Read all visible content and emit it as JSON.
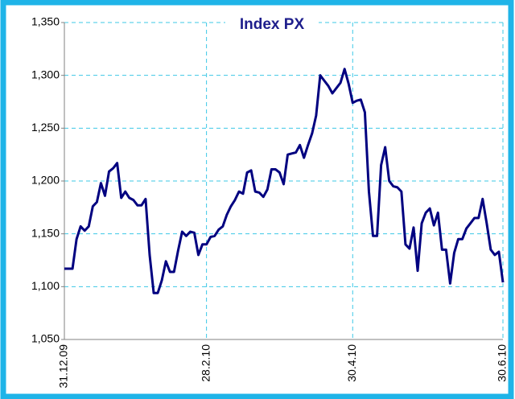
{
  "chart_data": {
    "type": "line",
    "title": "Index PX",
    "categories": [
      "31.12.09",
      null,
      null,
      null,
      null,
      null,
      null,
      null,
      null,
      null,
      null,
      null,
      null,
      null,
      null,
      null,
      null,
      null,
      null,
      null,
      null,
      null,
      null,
      null,
      null,
      null,
      null,
      null,
      null,
      null,
      null,
      null,
      null,
      null,
      null,
      "28.2.10",
      null,
      null,
      null,
      null,
      null,
      null,
      null,
      null,
      null,
      null,
      null,
      null,
      null,
      null,
      null,
      null,
      null,
      null,
      null,
      null,
      null,
      null,
      null,
      null,
      null,
      null,
      null,
      null,
      null,
      null,
      null,
      null,
      null,
      null,
      null,
      "30.4.10",
      null,
      null,
      null,
      null,
      null,
      null,
      null,
      null,
      null,
      null,
      null,
      null,
      null,
      null,
      null,
      null,
      null,
      null,
      null,
      null,
      null,
      null,
      null,
      null,
      null,
      null,
      null,
      null,
      null,
      null,
      null,
      null,
      null,
      null,
      null,
      null,
      "30.6.10"
    ],
    "series": [
      {
        "name": "Index PX",
        "color": "#000080",
        "values": [
          1117,
          1117,
          1117,
          1145,
          1157,
          1153,
          1157,
          1176,
          1180,
          1198,
          1186,
          1209,
          1212,
          1217,
          1184,
          1190,
          1184,
          1182,
          1177,
          1177,
          1183,
          1130,
          1094,
          1094,
          1106,
          1124,
          1114,
          1114,
          1134,
          1152,
          1148,
          1152,
          1151,
          1130,
          1140,
          1140,
          1147,
          1148,
          1154,
          1157,
          1168,
          1176,
          1182,
          1190,
          1188,
          1208,
          1210,
          1190,
          1189,
          1185,
          1192,
          1211,
          1211,
          1208,
          1197,
          1225,
          1226,
          1227,
          1234,
          1222,
          1234,
          1245,
          1262,
          1300,
          1295,
          1290,
          1283,
          1288,
          1293,
          1306,
          1292,
          1274,
          1276,
          1277,
          1265,
          1190,
          1148,
          1148,
          1215,
          1232,
          1200,
          1195,
          1194,
          1190,
          1140,
          1136,
          1156,
          1115,
          1160,
          1170,
          1174,
          1158,
          1170,
          1135,
          1135,
          1103,
          1132,
          1145,
          1145,
          1155,
          1160,
          1165,
          1165,
          1183,
          1160,
          1135,
          1130,
          1133,
          1104
        ]
      }
    ],
    "ylim": [
      1050,
      1350
    ],
    "yticks": [
      {
        "value": 1050,
        "label": "1,050"
      },
      {
        "value": 1100,
        "label": "1,100"
      },
      {
        "value": 1150,
        "label": "1,150"
      },
      {
        "value": 1200,
        "label": "1,200"
      },
      {
        "value": 1250,
        "label": "1,250"
      },
      {
        "value": 1300,
        "label": "1,300"
      },
      {
        "value": 1350,
        "label": "1,350"
      }
    ],
    "grid": true
  }
}
